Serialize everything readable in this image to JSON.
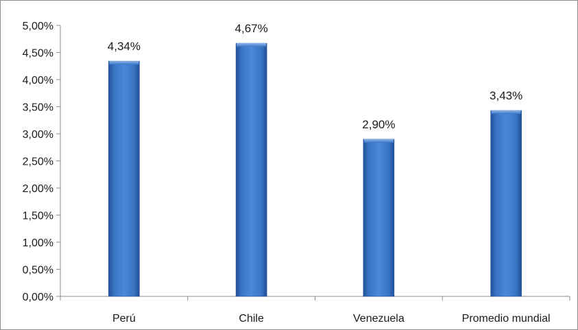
{
  "chart_data": {
    "type": "bar",
    "categories": [
      "Perú",
      "Chile",
      "Venezuela",
      "Promedio mundial"
    ],
    "values": [
      4.34,
      4.67,
      2.9,
      3.43
    ],
    "data_labels": [
      "4,34%",
      "4,67%",
      "2,90%",
      "3,43%"
    ],
    "ylim": [
      0,
      5
    ],
    "y_ticks": [
      0,
      0.5,
      1,
      1.5,
      2,
      2.5,
      3,
      3.5,
      4,
      4.5,
      5
    ],
    "y_tick_labels": [
      "0,00%",
      "0,50%",
      "1,00%",
      "1,50%",
      "2,00%",
      "2,50%",
      "3,00%",
      "3,50%",
      "4,00%",
      "4,50%",
      "5,00%"
    ],
    "title": "",
    "xlabel": "",
    "ylabel": "",
    "grid": false,
    "legend": "none",
    "bar_color": "#3a75c4"
  }
}
